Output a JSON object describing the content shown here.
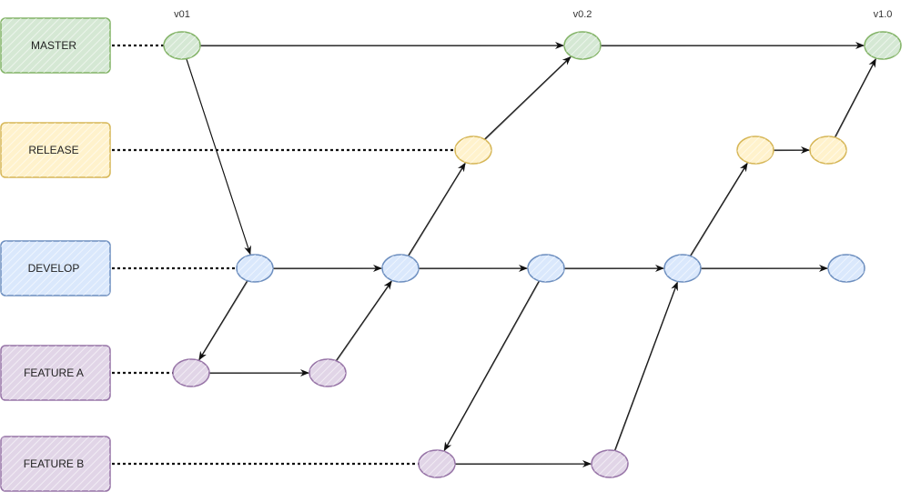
{
  "branches": [
    {
      "id": "master",
      "label": "MASTER",
      "fill": "#d5e8d4",
      "stroke": "#82b366"
    },
    {
      "id": "release",
      "label": "RELEASE",
      "fill": "#fff2cc",
      "stroke": "#d6b656"
    },
    {
      "id": "develop",
      "label": "DEVELOP",
      "fill": "#dae8fc",
      "stroke": "#6c8ebf"
    },
    {
      "id": "feature-a",
      "label": "FEATURE A",
      "fill": "#e1d5e7",
      "stroke": "#9673a6"
    },
    {
      "id": "feature-b",
      "label": "FEATURE B",
      "fill": "#e1d5e7",
      "stroke": "#9673a6"
    }
  ],
  "tags": [
    {
      "node": "m1",
      "text": "v01"
    },
    {
      "node": "m2",
      "text": "v0.2"
    },
    {
      "node": "m3",
      "text": "v1.0"
    }
  ],
  "nodes": [
    {
      "id": "m1",
      "branch": "master"
    },
    {
      "id": "m2",
      "branch": "master"
    },
    {
      "id": "m3",
      "branch": "master"
    },
    {
      "id": "r1",
      "branch": "release"
    },
    {
      "id": "r2",
      "branch": "release"
    },
    {
      "id": "r3",
      "branch": "release"
    },
    {
      "id": "d1",
      "branch": "develop"
    },
    {
      "id": "d2",
      "branch": "develop"
    },
    {
      "id": "d3",
      "branch": "develop"
    },
    {
      "id": "d4",
      "branch": "develop"
    },
    {
      "id": "d5",
      "branch": "develop"
    },
    {
      "id": "fa1",
      "branch": "feature-a"
    },
    {
      "id": "fa2",
      "branch": "feature-a"
    },
    {
      "id": "fb1",
      "branch": "feature-b"
    },
    {
      "id": "fb2",
      "branch": "feature-b"
    }
  ],
  "edges": [
    {
      "from": "m1",
      "to": "m2"
    },
    {
      "from": "m2",
      "to": "m3"
    },
    {
      "from": "m1",
      "to": "d1"
    },
    {
      "from": "d1",
      "to": "fa1"
    },
    {
      "from": "fa1",
      "to": "fa2"
    },
    {
      "from": "fa2",
      "to": "d2"
    },
    {
      "from": "d1",
      "to": "d2"
    },
    {
      "from": "d2",
      "to": "r1"
    },
    {
      "from": "r1",
      "to": "m2"
    },
    {
      "from": "d2",
      "to": "d3"
    },
    {
      "from": "d3",
      "to": "fb1"
    },
    {
      "from": "fb1",
      "to": "fb2"
    },
    {
      "from": "fb2",
      "to": "d4"
    },
    {
      "from": "d3",
      "to": "d4"
    },
    {
      "from": "d4",
      "to": "r2"
    },
    {
      "from": "r2",
      "to": "r3"
    },
    {
      "from": "r3",
      "to": "m3"
    },
    {
      "from": "d4",
      "to": "d5"
    }
  ],
  "branch_lines": [
    {
      "branch": "master",
      "to": "m1"
    },
    {
      "branch": "release",
      "to": "r1"
    },
    {
      "branch": "develop",
      "to": "d1"
    },
    {
      "branch": "feature-a",
      "to": "fa1"
    },
    {
      "branch": "feature-b",
      "to": "fb1"
    }
  ]
}
